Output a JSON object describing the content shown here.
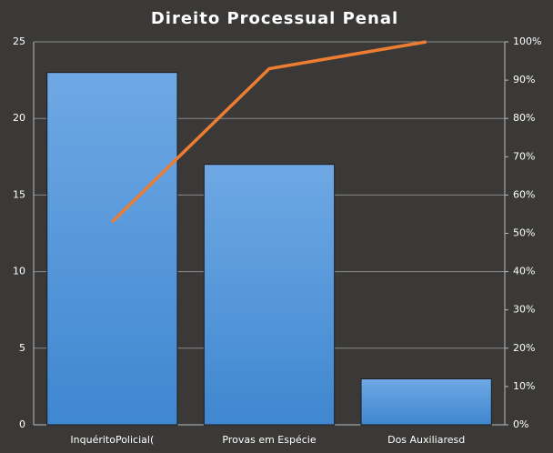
{
  "chart_data": {
    "type": "bar",
    "title": "Direito Processual Penal",
    "categories": [
      "InquéritoPolicial(",
      "Provas em Espécie",
      "Dos Auxiliaresd"
    ],
    "series": [
      {
        "color": "#5a9be0",
        "values": [
          23,
          17,
          3
        ]
      },
      {
        "type": "line",
        "axis": "y2",
        "color": "#ed7d31",
        "values": [
          53,
          93,
          100
        ]
      }
    ],
    "ylim": [
      0,
      25
    ],
    "yticks": [
      0,
      5,
      10,
      15,
      20,
      25
    ],
    "y2lim": [
      0,
      100
    ],
    "y2ticks": [
      {
        "value": 0,
        "label": "0%"
      },
      {
        "value": 10,
        "label": "10%"
      },
      {
        "value": 20,
        "label": "20%"
      },
      {
        "value": 30,
        "label": "30%"
      },
      {
        "value": 40,
        "label": "40%"
      },
      {
        "value": 50,
        "label": "50%"
      },
      {
        "value": 60,
        "label": "60%"
      },
      {
        "value": 70,
        "label": "70%"
      },
      {
        "value": 80,
        "label": "80%"
      },
      {
        "value": 90,
        "label": "90%"
      },
      {
        "value": 100,
        "label": "100%"
      }
    ],
    "grid": true
  }
}
